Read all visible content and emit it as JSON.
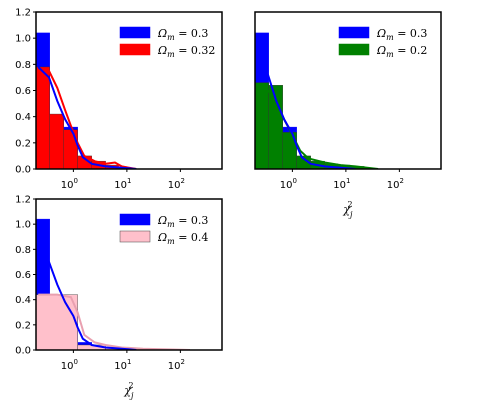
{
  "chart_data": [
    {
      "type": "histogram",
      "x_scale": "log",
      "xlim": [
        0.2,
        600
      ],
      "ylim": [
        0,
        1.2
      ],
      "x_ticks": [
        {
          "v": 1,
          "label": "10",
          "exp": "0"
        },
        {
          "v": 10,
          "label": "10",
          "exp": "1"
        },
        {
          "v": 100,
          "label": "10",
          "exp": "2"
        }
      ],
      "y_ticks": [
        "0.0",
        "0.2",
        "0.4",
        "0.6",
        "0.8",
        "1.0",
        "1.2"
      ],
      "xlabel": "",
      "series": [
        {
          "name": "Ω_m = 0.3",
          "color": "#0000ff",
          "bins": [
            [
              0.2,
              0.36,
              1.04
            ],
            [
              0.36,
              0.66,
              0.4
            ],
            [
              0.66,
              1.2,
              0.32
            ],
            [
              1.2,
              2.2,
              0.06
            ],
            [
              2.2,
              4.0,
              0.02
            ]
          ],
          "kde": [
            [
              0.22,
              0.78
            ],
            [
              0.35,
              0.7
            ],
            [
              0.5,
              0.52
            ],
            [
              0.7,
              0.38
            ],
            [
              0.85,
              0.32
            ],
            [
              1.0,
              0.27
            ],
            [
              1.2,
              0.18
            ],
            [
              1.5,
              0.09
            ],
            [
              2.2,
              0.04
            ],
            [
              4,
              0.02
            ],
            [
              8,
              0.01
            ],
            [
              15,
              0.0
            ]
          ]
        },
        {
          "name": "Ω_m = 0.32",
          "color": "#ff0000",
          "bins": [
            [
              0.2,
              0.36,
              0.78
            ],
            [
              0.36,
              0.66,
              0.42
            ],
            [
              0.66,
              1.2,
              0.3
            ],
            [
              1.2,
              2.2,
              0.1
            ],
            [
              2.2,
              4.0,
              0.06
            ],
            [
              4.0,
              7.0,
              0.03
            ]
          ],
          "kde": [
            [
              0.22,
              0.72
            ],
            [
              0.35,
              0.75
            ],
            [
              0.5,
              0.62
            ],
            [
              0.7,
              0.45
            ],
            [
              0.9,
              0.33
            ],
            [
              1.2,
              0.2
            ],
            [
              1.6,
              0.1
            ],
            [
              2.5,
              0.06
            ],
            [
              4,
              0.04
            ],
            [
              6,
              0.05
            ],
            [
              8,
              0.02
            ],
            [
              15,
              0.0
            ]
          ]
        }
      ]
    },
    {
      "type": "histogram",
      "x_scale": "log",
      "xlim": [
        0.2,
        600
      ],
      "ylim": [
        0,
        1.2
      ],
      "x_ticks": [
        {
          "v": 1,
          "label": "10",
          "exp": "0"
        },
        {
          "v": 10,
          "label": "10",
          "exp": "1"
        },
        {
          "v": 100,
          "label": "10",
          "exp": "2"
        }
      ],
      "y_ticks": [],
      "xlabel": "χ",
      "xlabel_sub": "j",
      "xlabel_sup": "2",
      "series": [
        {
          "name": "Ω_m = 0.3",
          "color": "#0000ff",
          "bins": [
            [
              0.2,
              0.36,
              1.04
            ],
            [
              0.36,
              0.66,
              0.4
            ],
            [
              0.66,
              1.2,
              0.32
            ],
            [
              1.2,
              2.2,
              0.06
            ],
            [
              2.2,
              4.0,
              0.02
            ]
          ],
          "kde": [
            [
              0.22,
              0.8
            ],
            [
              0.35,
              0.72
            ],
            [
              0.5,
              0.52
            ],
            [
              0.7,
              0.38
            ],
            [
              0.85,
              0.32
            ],
            [
              1.0,
              0.27
            ],
            [
              1.2,
              0.18
            ],
            [
              1.5,
              0.09
            ],
            [
              2.2,
              0.04
            ],
            [
              4,
              0.02
            ],
            [
              8,
              0.01
            ],
            [
              15,
              0.0
            ]
          ]
        },
        {
          "name": "Ω_m = 0.2",
          "color": "#008000",
          "bins": [
            [
              0.2,
              0.36,
              0.66
            ],
            [
              0.36,
              0.66,
              0.64
            ],
            [
              0.66,
              1.2,
              0.28
            ],
            [
              1.2,
              2.2,
              0.1
            ],
            [
              2.2,
              4.0,
              0.06
            ],
            [
              4.0,
              7.0,
              0.04
            ],
            [
              7.0,
              12.0,
              0.03
            ],
            [
              12.0,
              22.0,
              0.02
            ]
          ],
          "kde": [
            [
              0.22,
              0.62
            ],
            [
              0.35,
              0.6
            ],
            [
              0.5,
              0.52
            ],
            [
              0.7,
              0.38
            ],
            [
              1.0,
              0.26
            ],
            [
              1.4,
              0.14
            ],
            [
              2,
              0.08
            ],
            [
              4,
              0.05
            ],
            [
              8,
              0.03
            ],
            [
              15,
              0.02
            ],
            [
              25,
              0.01
            ],
            [
              40,
              0.0
            ]
          ]
        }
      ]
    },
    {
      "type": "histogram",
      "x_scale": "log",
      "xlim": [
        0.2,
        600
      ],
      "ylim": [
        0,
        1.2
      ],
      "x_ticks": [
        {
          "v": 1,
          "label": "10",
          "exp": "0"
        },
        {
          "v": 10,
          "label": "10",
          "exp": "1"
        },
        {
          "v": 100,
          "label": "10",
          "exp": "2"
        }
      ],
      "y_ticks": [
        "0.0",
        "0.2",
        "0.4",
        "0.6",
        "0.8",
        "1.0",
        "1.2"
      ],
      "xlabel": "χ",
      "xlabel_sub": "j",
      "xlabel_sup": "2",
      "series": [
        {
          "name": "Ω_m = 0.3",
          "color": "#0000ff",
          "bins": [
            [
              0.2,
              0.36,
              1.04
            ],
            [
              0.36,
              0.66,
              0.4
            ],
            [
              0.66,
              1.2,
              0.32
            ],
            [
              1.2,
              2.2,
              0.06
            ],
            [
              2.2,
              4.0,
              0.02
            ]
          ],
          "kde": [
            [
              0.22,
              0.78
            ],
            [
              0.35,
              0.7
            ],
            [
              0.5,
              0.52
            ],
            [
              0.7,
              0.38
            ],
            [
              0.85,
              0.32
            ],
            [
              1.0,
              0.27
            ],
            [
              1.2,
              0.18
            ],
            [
              1.5,
              0.09
            ],
            [
              2.2,
              0.04
            ],
            [
              4,
              0.02
            ],
            [
              8,
              0.01
            ],
            [
              15,
              0.0
            ]
          ]
        },
        {
          "name": "Ω_m = 0.4",
          "color": "#ffc0cb",
          "bins": [
            [
              0.2,
              1.2,
              0.44
            ],
            [
              1.2,
              4.0,
              0.04
            ],
            [
              4.0,
              12.0,
              0.02
            ],
            [
              12.0,
              40.0,
              0.01
            ],
            [
              40.0,
              150.0,
              0.005
            ]
          ],
          "kde": [
            [
              0.22,
              0.44
            ],
            [
              0.5,
              0.44
            ],
            [
              0.9,
              0.42
            ],
            [
              1.2,
              0.3
            ],
            [
              1.6,
              0.12
            ],
            [
              2.5,
              0.06
            ],
            [
              4,
              0.04
            ],
            [
              8,
              0.02
            ],
            [
              20,
              0.01
            ],
            [
              60,
              0.005
            ],
            [
              150,
              0.0
            ]
          ]
        }
      ]
    }
  ]
}
